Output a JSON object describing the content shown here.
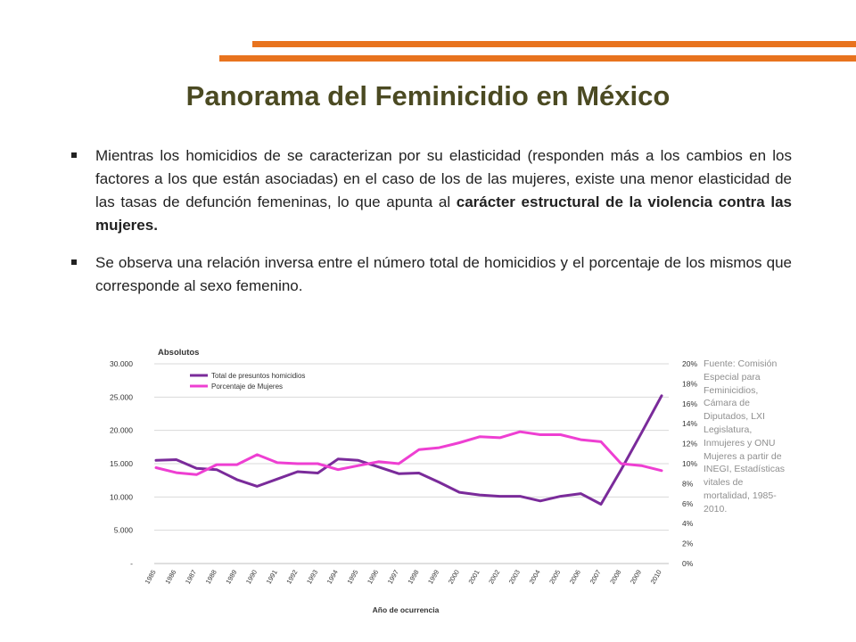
{
  "slide": {
    "title": "Panorama del Feminicidio en México",
    "bullets": [
      {
        "text": "Mientras los homicidios de se caracterizan por su elasticidad (responden más a los cambios en los factores a los que están asociadas) en el caso de los de las mujeres, existe una menor elasticidad de las tasas de defunción femeninas, lo que apunta al ",
        "bold": "carácter estructural de la violencia contra las mujeres."
      },
      {
        "text": "Se observa una relación inversa entre el número total de homicidios y el porcentaje de los mismos que corresponde al sexo femenino.",
        "bold": ""
      }
    ],
    "source_note": "Fuente: Comisión Especial para Feminicidios, Cámara de Diputados, LXI Legislatura, Inmujeres y ONU Mujeres a partir de INEGI, Estadísticas vitales de mortalidad, 1985-2010.",
    "colors": {
      "accent": "#e8731e",
      "title": "#4b4a22"
    }
  },
  "chart_data": {
    "type": "line",
    "title": "Absolutos",
    "xlabel": "Año de ocurrencia",
    "x": [
      "1985",
      "1986",
      "1987",
      "1988",
      "1989",
      "1990",
      "1991",
      "1992",
      "1993",
      "1994",
      "1995",
      "1996",
      "1997",
      "1998",
      "1999",
      "2000",
      "2001",
      "2002",
      "2003",
      "2004",
      "2005",
      "2006",
      "2007",
      "2008",
      "2009",
      "2010"
    ],
    "y_left": {
      "ylim": [
        0,
        30000
      ],
      "ticks": [
        "-",
        "5.000",
        "10.000",
        "15.000",
        "20.000",
        "25.000",
        "30.000"
      ]
    },
    "y_right": {
      "ylim": [
        0,
        20
      ],
      "ticks": [
        "0%",
        "2%",
        "4%",
        "6%",
        "8%",
        "10%",
        "12%",
        "14%",
        "16%",
        "18%",
        "20%"
      ]
    },
    "grid": true,
    "legend_position": "top-left",
    "series": [
      {
        "name": "Total de presuntos homicidios",
        "axis": "left",
        "color": "#7a2b9a",
        "values": [
          15500,
          15600,
          14300,
          14100,
          12600,
          11600,
          12700,
          13800,
          13600,
          15700,
          15500,
          14500,
          13500,
          13600,
          12200,
          10700,
          10300,
          10100,
          10100,
          9400,
          10100,
          10500,
          8900,
          14100,
          19600,
          25200
        ]
      },
      {
        "name": "Porcentaje de Mujeres",
        "axis": "right",
        "color": "#ee3fd2",
        "values": [
          9.6,
          9.1,
          8.9,
          9.9,
          9.9,
          10.9,
          10.1,
          10.0,
          10.0,
          9.4,
          9.8,
          10.2,
          10.0,
          11.4,
          11.6,
          12.1,
          12.7,
          12.6,
          13.2,
          12.9,
          12.9,
          12.4,
          12.2,
          10.0,
          9.8,
          9.3
        ]
      }
    ]
  }
}
